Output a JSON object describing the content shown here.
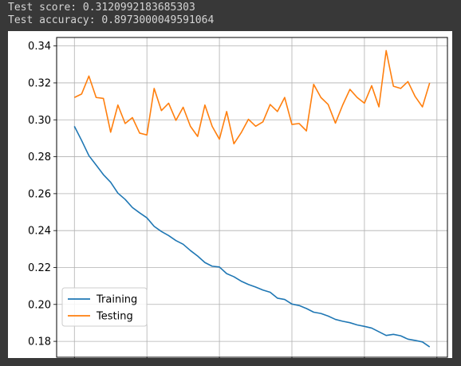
{
  "console": {
    "line1": "Test score: 0.3120992183685303",
    "line2": "Test accuracy: 0.8973000049591064"
  },
  "chart_data": {
    "type": "line",
    "title": "",
    "xlabel": "",
    "ylabel": "",
    "xlim": [
      -2.45,
      51.45
    ],
    "ylim": [
      0.1714,
      0.3446
    ],
    "xticks": [
      0,
      10,
      20,
      30,
      40,
      50
    ],
    "yticks": [
      0.18,
      0.2,
      0.22,
      0.24,
      0.26,
      0.28,
      0.3,
      0.32,
      0.34
    ],
    "grid": true,
    "legend_position": "lower-left",
    "x": [
      0,
      1,
      2,
      3,
      4,
      5,
      6,
      7,
      8,
      9,
      10,
      11,
      12,
      13,
      14,
      15,
      16,
      17,
      18,
      19,
      20,
      21,
      22,
      23,
      24,
      25,
      26,
      27,
      28,
      29,
      30,
      31,
      32,
      33,
      34,
      35,
      36,
      37,
      38,
      39,
      40,
      41,
      42,
      43,
      44,
      45,
      46,
      47,
      48,
      49
    ],
    "series": [
      {
        "name": "Training",
        "color": "#1f77b4",
        "values": [
          0.2965,
          0.2888,
          0.2806,
          0.2755,
          0.2703,
          0.2662,
          0.2603,
          0.2569,
          0.2525,
          0.2496,
          0.2469,
          0.2423,
          0.2395,
          0.2373,
          0.2346,
          0.2326,
          0.2292,
          0.2262,
          0.2227,
          0.2207,
          0.2203,
          0.2167,
          0.215,
          0.2126,
          0.2108,
          0.2094,
          0.2078,
          0.2066,
          0.2034,
          0.2027,
          0.2002,
          0.1994,
          0.1978,
          0.1958,
          0.1951,
          0.1937,
          0.1919,
          0.1909,
          0.1901,
          0.1889,
          0.1881,
          0.1872,
          0.1852,
          0.1832,
          0.1838,
          0.183,
          0.1812,
          0.1805,
          0.1797,
          0.177
        ]
      },
      {
        "name": "Testing",
        "color": "#ff7f0e",
        "values": [
          0.3121,
          0.314,
          0.3237,
          0.3121,
          0.3116,
          0.2933,
          0.308,
          0.298,
          0.3012,
          0.2928,
          0.2918,
          0.317,
          0.305,
          0.309,
          0.2997,
          0.3068,
          0.2965,
          0.291,
          0.308,
          0.2965,
          0.2895,
          0.3045,
          0.287,
          0.293,
          0.3003,
          0.2965,
          0.2989,
          0.3083,
          0.3045,
          0.3121,
          0.2975,
          0.298,
          0.294,
          0.3192,
          0.3121,
          0.3083,
          0.2982,
          0.308,
          0.3165,
          0.3121,
          0.309,
          0.3185,
          0.307,
          0.3375,
          0.3182,
          0.317,
          0.3207,
          0.3126,
          0.307,
          0.32
        ]
      }
    ]
  }
}
